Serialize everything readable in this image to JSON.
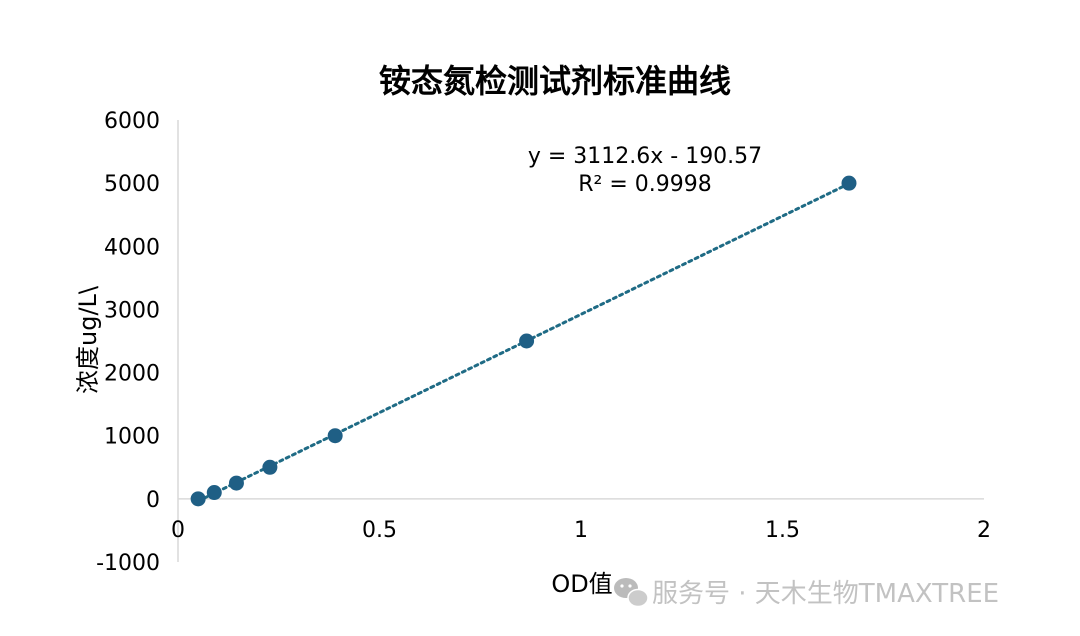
{
  "chart_data": {
    "type": "scatter",
    "title": "铵态氮检测试剂标准曲线",
    "xlabel": "OD值",
    "ylabel": "浓度ug/L\\",
    "xlim": [
      0,
      2
    ],
    "ylim": [
      -1000,
      6000
    ],
    "x_ticks": [
      "0",
      "0.5",
      "1",
      "1.5",
      "2"
    ],
    "y_ticks": [
      "-1000",
      "0",
      "1000",
      "2000",
      "3000",
      "4000",
      "5000",
      "6000"
    ],
    "points": [
      {
        "x": 0.05,
        "y": 0
      },
      {
        "x": 0.09,
        "y": 100
      },
      {
        "x": 0.145,
        "y": 250
      },
      {
        "x": 0.228,
        "y": 500
      },
      {
        "x": 0.39,
        "y": 1000
      },
      {
        "x": 0.865,
        "y": 2500
      },
      {
        "x": 1.665,
        "y": 5000
      }
    ],
    "trendline": {
      "slope": 3112.6,
      "intercept": -190.57,
      "style": "dotted"
    },
    "equation": "y = 3112.6x - 190.57",
    "r2_label": "R² = 0.9998",
    "grid": false,
    "legend": "none",
    "colors": {
      "marker": "#1f5f85",
      "trendline": "#1f6b85",
      "axis": "#d9d9d9"
    }
  },
  "watermark": {
    "icon": "wechat-icon",
    "text": "服务号 · 天木生物TMAXTREE"
  }
}
